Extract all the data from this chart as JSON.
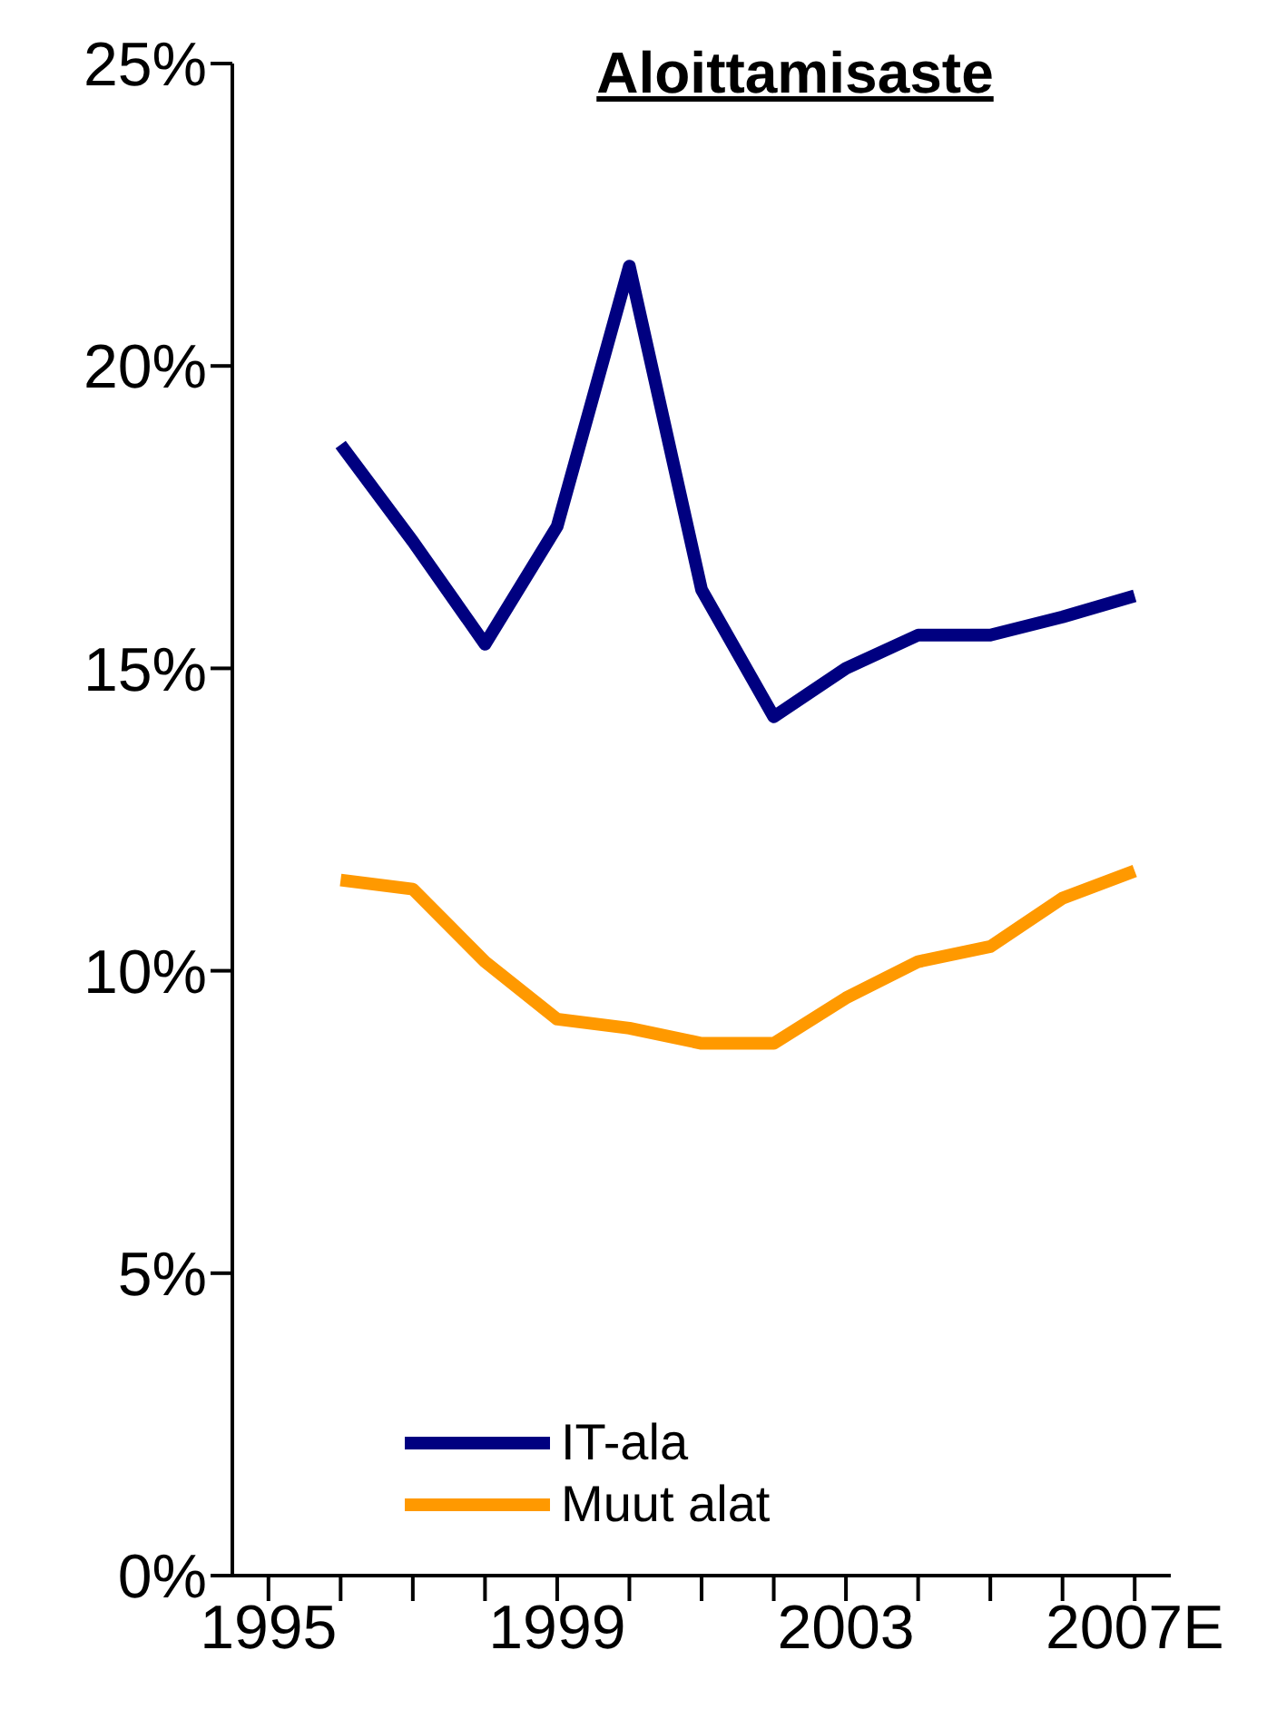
{
  "chart_data": {
    "type": "line",
    "title": "Aloittamisaste",
    "categories": [
      "1995",
      null,
      null,
      null,
      "1999",
      null,
      null,
      null,
      "2003",
      null,
      null,
      null,
      "2007E"
    ],
    "series": [
      {
        "name": "IT-ala",
        "color": "#000080",
        "values": [
          null,
          18.7,
          17.1,
          15.4,
          17.35,
          21.65,
          16.3,
          14.2,
          15.0,
          15.55,
          15.55,
          15.85,
          16.2
        ]
      },
      {
        "name": "Muut alat",
        "color": "#ff9900",
        "values": [
          null,
          11.5,
          11.35,
          10.15,
          9.2,
          9.05,
          8.8,
          8.8,
          9.55,
          10.15,
          10.4,
          11.2,
          11.65
        ]
      }
    ],
    "ylim": [
      0,
      25
    ],
    "yticks": [
      {
        "value": 0,
        "label": "0%"
      },
      {
        "value": 5,
        "label": "5%"
      },
      {
        "value": 10,
        "label": "10%"
      },
      {
        "value": 15,
        "label": "15%"
      },
      {
        "value": 20,
        "label": "20%"
      },
      {
        "value": 25,
        "label": "25%"
      }
    ],
    "grid": false,
    "legend": "bottom left",
    "marker": "none",
    "line_style": "solid"
  }
}
